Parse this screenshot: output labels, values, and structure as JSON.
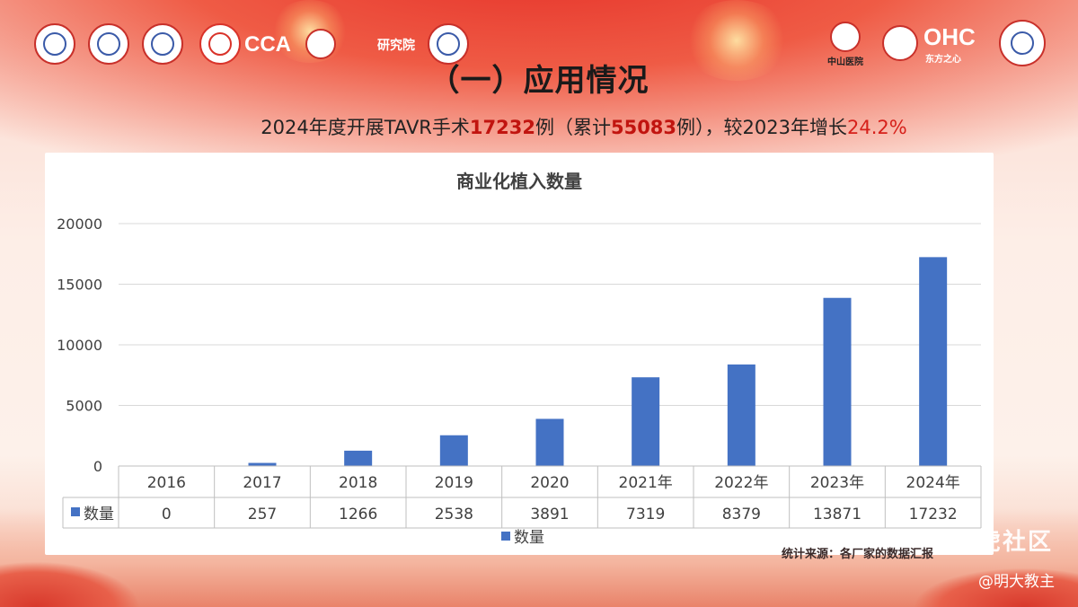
{
  "slide": {
    "title": "（一）应用情况",
    "summary": {
      "prefix": "2024年度开展TAVR手术",
      "count": "17232",
      "mid1": "例（累计",
      "cumulative": "55083",
      "mid2": "例），较2023年增长",
      "growth": "24.2%"
    },
    "logos_text": [
      "CCA",
      "研究院",
      "中山医院",
      "OHC",
      "东方之心"
    ],
    "source_note": "统计来源：各厂家的数据汇报",
    "watermark": "老虎社区",
    "credit": "@明大教主"
  },
  "colors": {
    "bar": "#4472c4",
    "highlight": "#c1140f",
    "banner": "#e6332a"
  },
  "chart_data": {
    "type": "bar",
    "title": "商业化植入数量",
    "categories": [
      "2016",
      "2017",
      "2018",
      "2019",
      "2020",
      "2021年",
      "2022年",
      "2023年",
      "2024年"
    ],
    "series": [
      {
        "name": "数量",
        "values": [
          0,
          257,
          1266,
          2538,
          3891,
          7319,
          8379,
          13871,
          17232
        ]
      }
    ],
    "ylim": [
      0,
      20000
    ],
    "yticks": [
      0,
      5000,
      10000,
      15000,
      20000
    ],
    "grid": true,
    "legend": "bottom",
    "data_table": true
  }
}
